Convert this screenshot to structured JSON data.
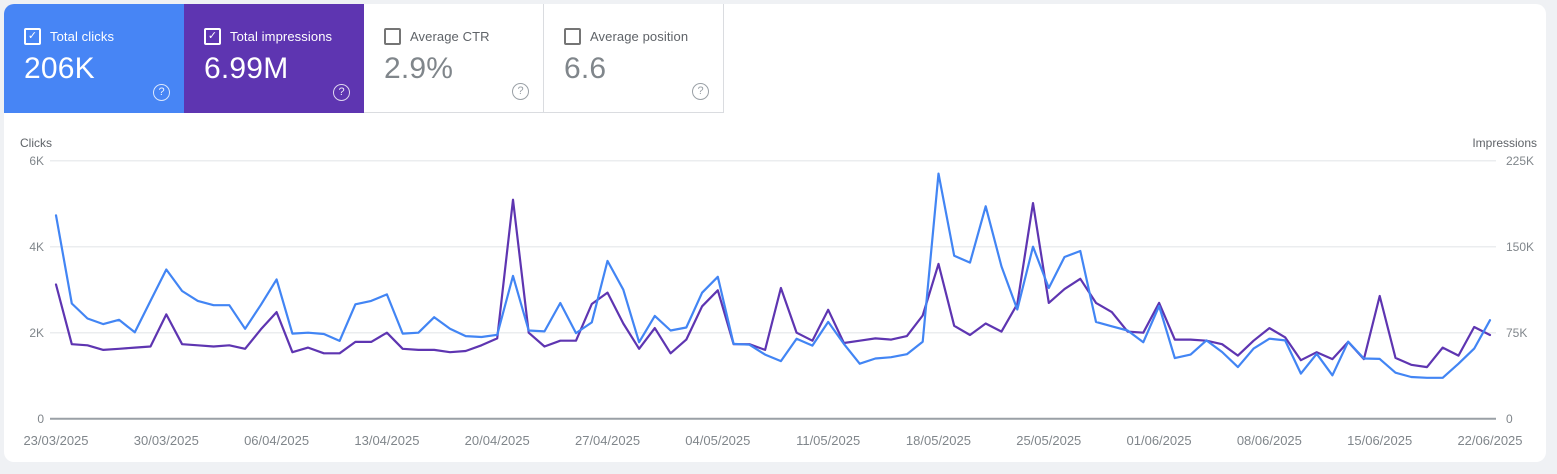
{
  "cards": [
    {
      "label": "Total clicks",
      "value": "206K",
      "selected": true,
      "color": "#4785f5"
    },
    {
      "label": "Total impressions",
      "value": "6.99M",
      "selected": true,
      "color": "#5e35b1"
    },
    {
      "label": "Average CTR",
      "value": "2.9%",
      "selected": false,
      "color": "#ffffff"
    },
    {
      "label": "Average position",
      "value": "6.6",
      "selected": false,
      "color": "#ffffff"
    }
  ],
  "icons": {
    "checkbox_check": "✓",
    "help": "?"
  },
  "chart_data": {
    "type": "line",
    "x_unit": "day",
    "date_range": {
      "start": "23/03/2025",
      "end": "22/06/2025"
    },
    "x_labels": [
      "23/03/2025",
      "30/03/2025",
      "06/04/2025",
      "13/04/2025",
      "20/04/2025",
      "27/04/2025",
      "04/05/2025",
      "11/05/2025",
      "18/05/2025",
      "25/05/2025",
      "01/06/2025",
      "08/06/2025",
      "15/06/2025",
      "22/06/2025"
    ],
    "left_axis": {
      "title": "Clicks",
      "ticks": [
        "6K",
        "4K",
        "2K",
        "0"
      ],
      "max": 6000,
      "min": 0
    },
    "right_axis": {
      "title": "Impressions",
      "ticks": [
        "225K",
        "150K",
        "75K",
        "0"
      ],
      "max": 225000,
      "min": 0
    },
    "grid": "horizontal",
    "legend": "none",
    "series": [
      {
        "name": "Total clicks",
        "axis": "left",
        "color": "#4285f4",
        "values": [
          4730,
          2680,
          2330,
          2200,
          2300,
          2010,
          2740,
          3470,
          2970,
          2740,
          2640,
          2640,
          2090,
          2650,
          3240,
          1980,
          2000,
          1970,
          1810,
          2660,
          2740,
          2890,
          1980,
          2000,
          2360,
          2090,
          1920,
          1900,
          1950,
          3320,
          2050,
          2030,
          2690,
          1990,
          2240,
          3670,
          3000,
          1780,
          2390,
          2050,
          2120,
          2930,
          3300,
          1740,
          1720,
          1490,
          1340,
          1860,
          1700,
          2250,
          1740,
          1280,
          1400,
          1430,
          1500,
          1790,
          5700,
          3790,
          3630,
          4940,
          3540,
          2540,
          4000,
          3040,
          3760,
          3900,
          2250,
          2150,
          2050,
          1780,
          2620,
          1410,
          1490,
          1820,
          1550,
          1200,
          1630,
          1860,
          1820,
          1050,
          1510,
          1010,
          1790,
          1400,
          1390,
          1070,
          970,
          950,
          950,
          1280,
          1630,
          2290
        ]
      },
      {
        "name": "Total impressions",
        "axis": "right",
        "color": "#5e35b1",
        "values": [
          117000,
          65000,
          64000,
          60000,
          61000,
          62000,
          63000,
          91000,
          65000,
          64000,
          63000,
          64000,
          61000,
          78000,
          93000,
          58000,
          62000,
          57000,
          57000,
          67000,
          67000,
          75000,
          61000,
          60000,
          60000,
          58000,
          59000,
          64000,
          70000,
          191000,
          75000,
          63000,
          68000,
          68000,
          100000,
          110000,
          83000,
          61000,
          79000,
          57000,
          69000,
          98000,
          112000,
          65000,
          65000,
          60000,
          114000,
          75000,
          68000,
          95000,
          66000,
          68000,
          70000,
          69000,
          72000,
          90000,
          135000,
          81000,
          73000,
          83000,
          76000,
          100000,
          188000,
          101000,
          113000,
          122000,
          101000,
          93000,
          76000,
          75000,
          101000,
          69000,
          69000,
          68000,
          65000,
          55000,
          68000,
          79000,
          71000,
          51000,
          58000,
          52000,
          67000,
          52000,
          107000,
          53000,
          47000,
          45000,
          62000,
          55000,
          80000,
          73000
        ]
      }
    ]
  }
}
